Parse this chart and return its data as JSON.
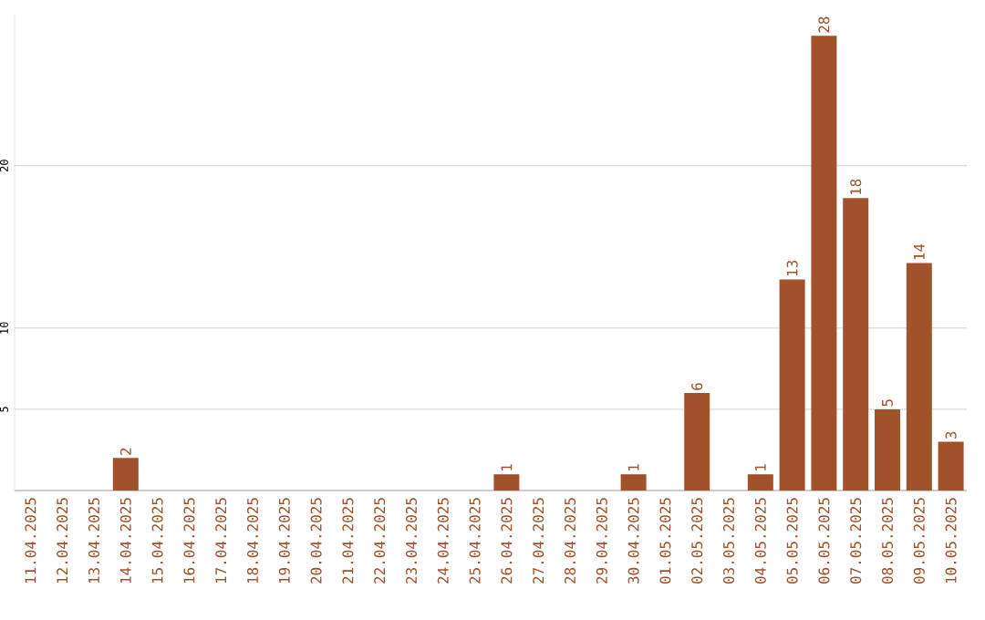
{
  "chart_data": {
    "type": "bar",
    "categories": [
      "11.04.2025",
      "12.04.2025",
      "13.04.2025",
      "14.04.2025",
      "15.04.2025",
      "16.04.2025",
      "17.04.2025",
      "18.04.2025",
      "19.04.2025",
      "20.04.2025",
      "21.04.2025",
      "22.04.2025",
      "23.04.2025",
      "24.04.2025",
      "25.04.2025",
      "26.04.2025",
      "27.04.2025",
      "28.04.2025",
      "29.04.2025",
      "30.04.2025",
      "01.05.2025",
      "02.05.2025",
      "03.05.2025",
      "04.05.2025",
      "05.05.2025",
      "06.05.2025",
      "07.05.2025",
      "08.05.2025",
      "09.05.2025",
      "10.05.2025"
    ],
    "values": [
      0,
      0,
      0,
      2,
      0,
      0,
      0,
      0,
      0,
      0,
      0,
      0,
      0,
      0,
      0,
      1,
      0,
      0,
      0,
      1,
      0,
      6,
      0,
      1,
      13,
      28,
      18,
      5,
      14,
      3
    ],
    "value_labels": [
      null,
      null,
      null,
      "2",
      null,
      null,
      null,
      null,
      null,
      null,
      null,
      null,
      null,
      null,
      null,
      "1",
      null,
      null,
      null,
      "1",
      null,
      "6",
      null,
      "1",
      "13",
      "28",
      "18",
      "5",
      "14",
      "3"
    ],
    "color": "#a0522d",
    "ylim": [
      0,
      29.3
    ],
    "yticks": [
      5,
      10,
      20
    ],
    "grid": "y"
  }
}
